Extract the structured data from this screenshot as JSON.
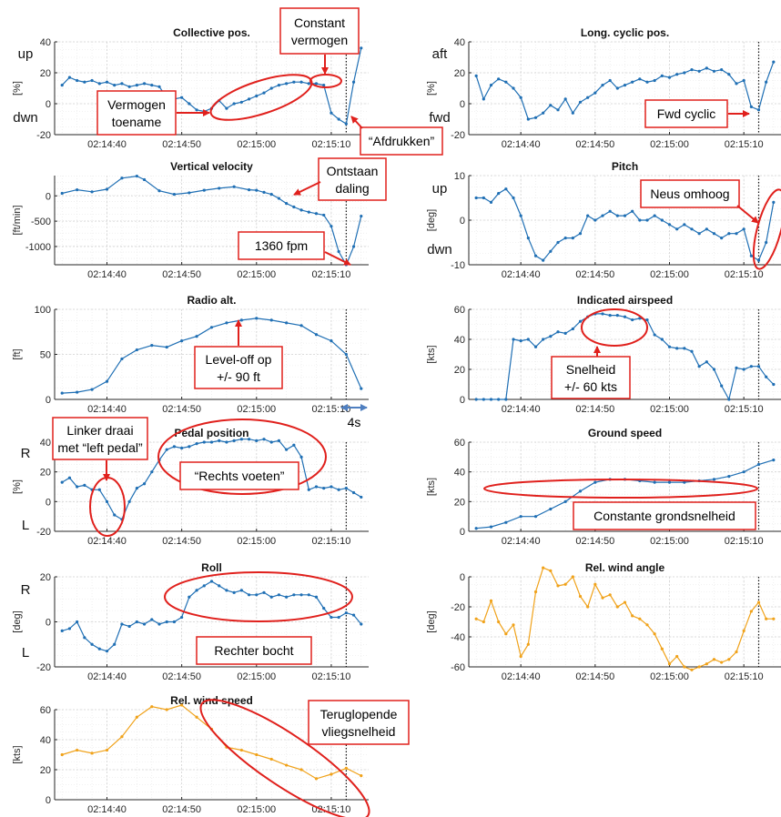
{
  "colors": {
    "blue": "#1f6fb4",
    "orange": "#f0a21a",
    "red": "#e0201c",
    "arrow_blue": "#4f7fc0"
  },
  "x_ticks": [
    "02:14:40",
    "02:14:50",
    "02:15:00",
    "02:15:10"
  ],
  "vertical_marker_x": "02:15:12",
  "chart_data": [
    {
      "id": "collective",
      "type": "line",
      "title": "Collective pos.",
      "ylabel": "[%]",
      "ylim": [
        -20,
        40
      ],
      "yticks": [
        -20,
        0,
        20,
        40
      ],
      "side_labels": [
        "up",
        "dwn"
      ],
      "series_color": "blue",
      "grid": true,
      "x": [
        -26,
        -25,
        -24,
        -23,
        -22,
        -21,
        -20,
        -19,
        -18,
        -17,
        -16,
        -15,
        -14,
        -13,
        -12,
        -11,
        -10,
        -9,
        -8,
        -7,
        -6,
        -5,
        -4,
        -3,
        -2,
        -1,
        0,
        1,
        2,
        3,
        4,
        5,
        6,
        7,
        8,
        9,
        10,
        11,
        12,
        13,
        14
      ],
      "values": [
        12,
        17,
        15,
        14,
        15,
        13,
        14,
        12,
        13,
        11,
        12,
        13,
        12,
        11,
        4,
        3,
        4,
        0,
        -4,
        -5,
        -3,
        2,
        -3,
        0,
        1,
        3,
        5,
        7,
        10,
        12,
        13,
        14,
        14,
        13,
        13,
        12,
        -6,
        -10,
        -13,
        14,
        36
      ]
    },
    {
      "id": "long_cyclic",
      "type": "line",
      "title": "Long. cyclic pos.",
      "ylabel": "[%]",
      "ylim": [
        -20,
        40
      ],
      "yticks": [
        -20,
        0,
        20,
        40
      ],
      "side_labels": [
        "aft",
        "fwd"
      ],
      "series_color": "blue",
      "grid": true,
      "x": [
        -26,
        -25,
        -24,
        -23,
        -22,
        -21,
        -20,
        -19,
        -18,
        -17,
        -16,
        -15,
        -14,
        -13,
        -12,
        -11,
        -10,
        -9,
        -8,
        -7,
        -6,
        -5,
        -4,
        -3,
        -2,
        -1,
        0,
        1,
        2,
        3,
        4,
        5,
        6,
        7,
        8,
        9,
        10,
        11,
        12,
        13,
        14
      ],
      "values": [
        18,
        3,
        12,
        16,
        14,
        10,
        4,
        -10,
        -9,
        -6,
        -1,
        -4,
        3,
        -6,
        1,
        4,
        7,
        12,
        15,
        10,
        12,
        14,
        16,
        14,
        15,
        18,
        17,
        19,
        20,
        22,
        21,
        23,
        21,
        22,
        19,
        13,
        15,
        -2,
        -4,
        14,
        27
      ]
    },
    {
      "id": "vertical_velocity",
      "type": "line",
      "title": "Vertical velocity",
      "ylabel": "[ft/min]",
      "ylim": [
        -1360,
        400
      ],
      "yticks": [
        -1000,
        -500,
        0
      ],
      "series_color": "blue",
      "grid": true,
      "x": [
        -26,
        -24,
        -22,
        -20,
        -18,
        -16,
        -15,
        -13,
        -11,
        -9,
        -7,
        -5,
        -3,
        -1,
        0,
        1,
        2,
        3,
        4,
        5,
        6,
        7,
        8,
        9,
        10,
        11,
        12,
        13,
        14
      ],
      "values": [
        50,
        120,
        80,
        130,
        350,
        390,
        320,
        100,
        30,
        60,
        110,
        150,
        180,
        120,
        110,
        70,
        30,
        -50,
        -150,
        -220,
        -280,
        -320,
        -350,
        -380,
        -600,
        -1100,
        -1360,
        -1000,
        -400
      ]
    },
    {
      "id": "pitch",
      "type": "line",
      "title": "Pitch",
      "ylabel": "[deg]",
      "ylim": [
        -10,
        10
      ],
      "yticks": [
        -10,
        0,
        10
      ],
      "side_labels": [
        "up",
        "dwn"
      ],
      "series_color": "blue",
      "grid": true,
      "x": [
        -26,
        -25,
        -24,
        -23,
        -22,
        -21,
        -20,
        -19,
        -18,
        -17,
        -16,
        -15,
        -14,
        -13,
        -12,
        -11,
        -10,
        -9,
        -8,
        -7,
        -6,
        -5,
        -4,
        -3,
        -2,
        -1,
        0,
        1,
        2,
        3,
        4,
        5,
        6,
        7,
        8,
        9,
        10,
        11,
        12,
        13,
        14
      ],
      "values": [
        5,
        5,
        4,
        6,
        7,
        5,
        1,
        -4,
        -8,
        -9,
        -7,
        -5,
        -4,
        -4,
        -3,
        1,
        0,
        1,
        2,
        1,
        1,
        2,
        0,
        0,
        1,
        0,
        -1,
        -2,
        -1,
        -2,
        -3,
        -2,
        -3,
        -4,
        -3,
        -3,
        -2,
        -8,
        -9,
        -5,
        4
      ]
    },
    {
      "id": "radio_alt",
      "type": "line",
      "title": "Radio alt.",
      "ylabel": "[ft]",
      "ylim": [
        0,
        100
      ],
      "yticks": [
        0,
        50,
        100
      ],
      "series_color": "blue",
      "grid": true,
      "x": [
        -26,
        -24,
        -22,
        -20,
        -18,
        -16,
        -14,
        -12,
        -10,
        -8,
        -6,
        -4,
        -2,
        0,
        2,
        4,
        6,
        8,
        10,
        12,
        14
      ],
      "values": [
        7,
        8,
        11,
        20,
        45,
        55,
        60,
        58,
        65,
        70,
        80,
        85,
        88,
        90,
        88,
        85,
        82,
        72,
        65,
        50,
        12
      ]
    },
    {
      "id": "ias",
      "type": "line",
      "title": "Indicated airspeed",
      "ylabel": "[kts]",
      "ylim": [
        0,
        60
      ],
      "yticks": [
        0,
        20,
        40,
        60
      ],
      "series_color": "blue",
      "grid": true,
      "x": [
        -26,
        -25,
        -24,
        -23,
        -22,
        -21,
        -20,
        -19,
        -18,
        -17,
        -16,
        -15,
        -14,
        -13,
        -12,
        -11,
        -10,
        -9,
        -8,
        -7,
        -6,
        -5,
        -4,
        -3,
        -2,
        -1,
        0,
        1,
        2,
        3,
        4,
        5,
        6,
        7,
        8,
        9,
        10,
        11,
        12,
        13,
        14
      ],
      "values": [
        0,
        0,
        0,
        0,
        0,
        40,
        39,
        40,
        35,
        40,
        42,
        45,
        44,
        47,
        52,
        55,
        57,
        57,
        56,
        56,
        55,
        53,
        54,
        53,
        43,
        40,
        35,
        34,
        34,
        32,
        22,
        25,
        20,
        9,
        0,
        21,
        20,
        22,
        22,
        15,
        10
      ]
    },
    {
      "id": "pedal",
      "type": "line",
      "title": "Pedal position",
      "ylabel": "[%]",
      "ylim": [
        -20,
        40
      ],
      "yticks": [
        -20,
        0,
        20,
        40
      ],
      "side_labels": [
        "R",
        "L"
      ],
      "series_color": "blue",
      "grid": true,
      "x": [
        -26,
        -25,
        -24,
        -23,
        -22,
        -21,
        -20,
        -19,
        -18,
        -17,
        -16,
        -15,
        -14,
        -13,
        -12,
        -11,
        -10,
        -9,
        -8,
        -7,
        -6,
        -5,
        -4,
        -3,
        -2,
        -1,
        0,
        1,
        2,
        3,
        4,
        5,
        6,
        7,
        8,
        9,
        10,
        11,
        12,
        13,
        14
      ],
      "values": [
        13,
        16,
        10,
        11,
        8,
        8,
        0,
        -9,
        -12,
        0,
        9,
        12,
        20,
        28,
        35,
        37,
        36,
        37,
        39,
        40,
        40,
        41,
        40,
        41,
        42,
        42,
        41,
        42,
        40,
        41,
        35,
        38,
        30,
        8,
        10,
        9,
        10,
        8,
        9,
        6,
        3
      ]
    },
    {
      "id": "ground_speed",
      "type": "line",
      "title": "Ground speed",
      "ylabel": "[kts]",
      "ylim": [
        0,
        60
      ],
      "yticks": [
        0,
        20,
        40,
        60
      ],
      "series_color": "blue",
      "grid": true,
      "x": [
        -26,
        -24,
        -22,
        -20,
        -18,
        -16,
        -14,
        -12,
        -10,
        -8,
        -6,
        -4,
        -2,
        0,
        2,
        4,
        6,
        8,
        10,
        12,
        14
      ],
      "values": [
        2,
        3,
        6,
        10,
        10,
        15,
        20,
        27,
        33,
        35,
        35,
        34,
        33,
        33,
        33,
        34,
        35,
        37,
        40,
        45,
        48
      ]
    },
    {
      "id": "roll",
      "type": "line",
      "title": "Roll",
      "ylabel": "[deg]",
      "ylim": [
        -20,
        20
      ],
      "yticks": [
        -20,
        0,
        20
      ],
      "side_labels": [
        "R",
        "L"
      ],
      "series_color": "blue",
      "grid": true,
      "x": [
        -26,
        -25,
        -24,
        -23,
        -22,
        -21,
        -20,
        -19,
        -18,
        -17,
        -16,
        -15,
        -14,
        -13,
        -12,
        -11,
        -10,
        -9,
        -8,
        -7,
        -6,
        -5,
        -4,
        -3,
        -2,
        -1,
        0,
        1,
        2,
        3,
        4,
        5,
        6,
        7,
        8,
        9,
        10,
        11,
        12,
        13,
        14
      ],
      "values": [
        -4,
        -3,
        0,
        -7,
        -10,
        -12,
        -13,
        -10,
        -1,
        -2,
        0,
        -1,
        1,
        -1,
        0,
        0,
        2,
        11,
        14,
        16,
        18,
        16,
        14,
        13,
        14,
        12,
        12,
        13,
        11,
        12,
        11,
        12,
        12,
        12,
        11,
        6,
        2,
        2,
        4,
        3,
        -1
      ]
    },
    {
      "id": "rel_wind_angle",
      "type": "line",
      "title": "Rel. wind angle",
      "ylabel": "[deg]",
      "ylim": [
        -60,
        0
      ],
      "yticks": [
        -60,
        -40,
        -20,
        0
      ],
      "series_color": "orange",
      "grid": true,
      "x": [
        -26,
        -25,
        -24,
        -23,
        -22,
        -21,
        -20,
        -19,
        -18,
        -17,
        -16,
        -15,
        -14,
        -13,
        -12,
        -11,
        -10,
        -9,
        -8,
        -7,
        -6,
        -5,
        -4,
        -3,
        -2,
        -1,
        0,
        1,
        2,
        3,
        4,
        5,
        6,
        7,
        8,
        9,
        10,
        11,
        12,
        13,
        14
      ],
      "values": [
        -28,
        -30,
        -16,
        -30,
        -38,
        -32,
        -53,
        -45,
        -10,
        6,
        4,
        -6,
        -5,
        0,
        -13,
        -20,
        -5,
        -14,
        -12,
        -20,
        -17,
        -26,
        -28,
        -32,
        -38,
        -48,
        -58,
        -53,
        -60,
        -62,
        -60,
        -58,
        -55,
        -57,
        -55,
        -50,
        -36,
        -23,
        -17,
        -28,
        -28
      ]
    },
    {
      "id": "rel_wind_speed",
      "type": "line",
      "title": "Rel. wind speed",
      "ylabel": "[kts]",
      "ylim": [
        0,
        60
      ],
      "yticks": [
        0,
        20,
        40,
        60
      ],
      "series_color": "orange",
      "grid": true,
      "x": [
        -26,
        -24,
        -22,
        -20,
        -18,
        -16,
        -14,
        -12,
        -10,
        -8,
        -6,
        -4,
        -2,
        0,
        2,
        4,
        6,
        8,
        10,
        12,
        14
      ],
      "values": [
        30,
        33,
        31,
        33,
        42,
        55,
        62,
        60,
        63,
        55,
        47,
        35,
        33,
        30,
        27,
        23,
        20,
        14,
        17,
        21,
        16
      ]
    }
  ],
  "annotations": {
    "constant_power": [
      "Constant",
      "vermogen"
    ],
    "power_increase": [
      "Vermogen",
      "toename"
    ],
    "push_down": "“Afdrukken”",
    "fwd_cyclic": "Fwd cyclic",
    "descent_onset": [
      "Ontstaan",
      "daling"
    ],
    "fpm_1360": "1360 fpm",
    "nose_up": "Neus omhoog",
    "level_off": [
      "Level-off op",
      "+/- 90 ft"
    ],
    "four_s": "4s",
    "speed_60": [
      "Snelheid",
      "+/- 60 kts"
    ],
    "left_turn": [
      "Linker draai",
      "met “left pedal”"
    ],
    "right_feet": "“Rechts voeten”",
    "constant_gs": "Constante grondsnelheid",
    "right_bank": "Rechter bocht",
    "decreasing_airspeed": [
      "Teruglopende",
      "vliegsnelheid"
    ]
  }
}
